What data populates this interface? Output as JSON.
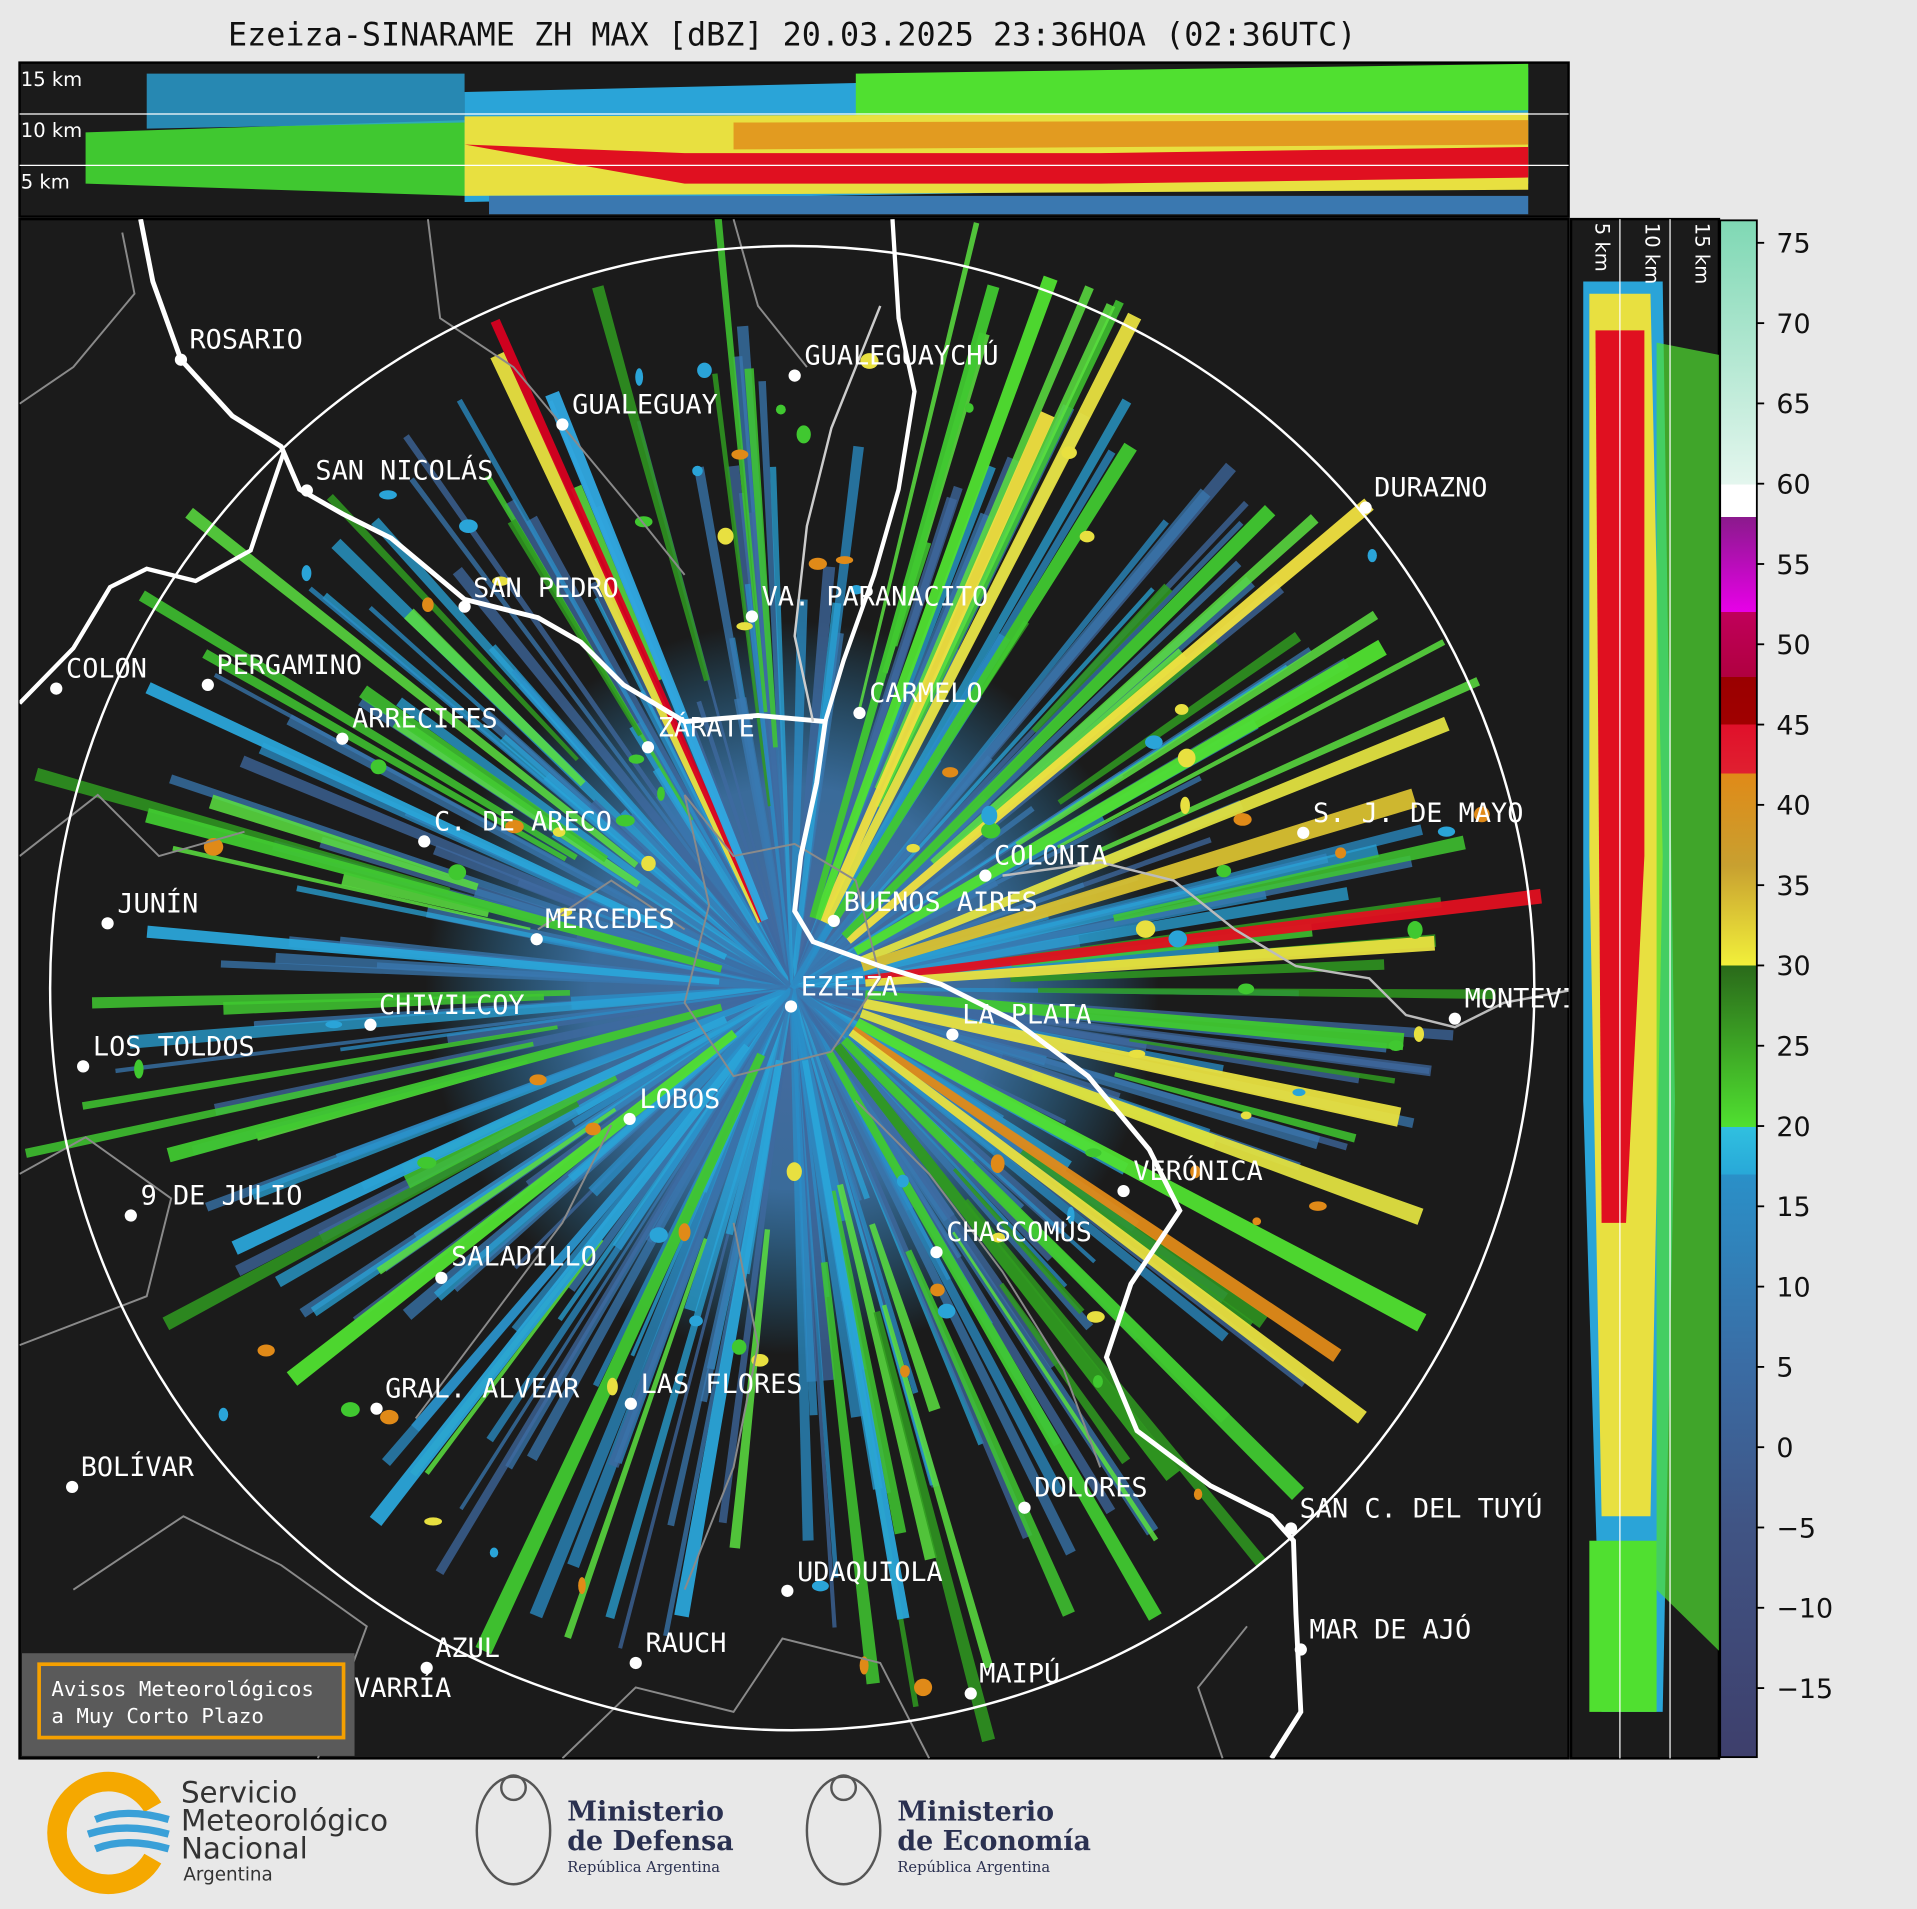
{
  "title": "Ezeiza-SINARAME ZH MAX [dBZ] 20.03.2025 23:36HOA (02:36UTC)",
  "top_panel": {
    "height_labels": [
      "15 km",
      "10 km",
      "5 km"
    ]
  },
  "side_panel": {
    "height_labels": [
      "5 km",
      "10 km",
      "15 km"
    ]
  },
  "cities": [
    "ROSARIO",
    "GUALEGUAYCHÚ",
    "GUALEGUAY",
    "SAN NICOLÁS",
    "DURAZNO",
    "SAN PEDRO",
    "VA. PARANACITO",
    "COLON",
    "PERGAMINO",
    "CARMELO",
    "ARRECIFES",
    "ZÁRATE",
    "C. DE ARECO",
    "S. J. DE MAYO",
    "COLONIA",
    "BUENOS AIRES",
    "JUNÍN",
    "MERCEDES",
    "EZEIZA",
    "MONTEVIDEO",
    "CHIVILCOY",
    "LA PLATA",
    "LOS TOLDOS",
    "LOBOS",
    "VERÓNICA",
    "9 DE JULIO",
    "CHASCOMÚS",
    "SALADILLO",
    "GRAL. ALVEAR",
    "LAS FLORES",
    "BOLÍVAR",
    "DOLORES",
    "SAN C. DEL TUYÚ",
    "UDAQUIOLA",
    "MAR DE AJÓ",
    "AZUL",
    "RAUCH",
    "OLAVARRÍA",
    "MAIPÚ"
  ],
  "colorbar": {
    "range": [
      -19.3,
      76.4
    ],
    "ticks": [
      75,
      70,
      65,
      60,
      55,
      50,
      45,
      40,
      35,
      30,
      25,
      20,
      15,
      10,
      5,
      0,
      {
        "value": -5,
        "label": "−5"
      },
      {
        "value": -10,
        "label": "−10"
      },
      {
        "value": -15,
        "label": "−15"
      }
    ]
  },
  "notice": {
    "lines": [
      "Avisos Meteorológicos",
      "a Muy Corto Plazo"
    ]
  },
  "logos": {
    "smn": [
      "Servicio",
      "Meteorológico",
      "Nacional",
      "Argentina"
    ],
    "defensa": [
      "Ministerio",
      "de Defensa",
      "República Argentina"
    ],
    "economia": [
      "Ministerio",
      "de Economía",
      "República Argentina"
    ]
  }
}
